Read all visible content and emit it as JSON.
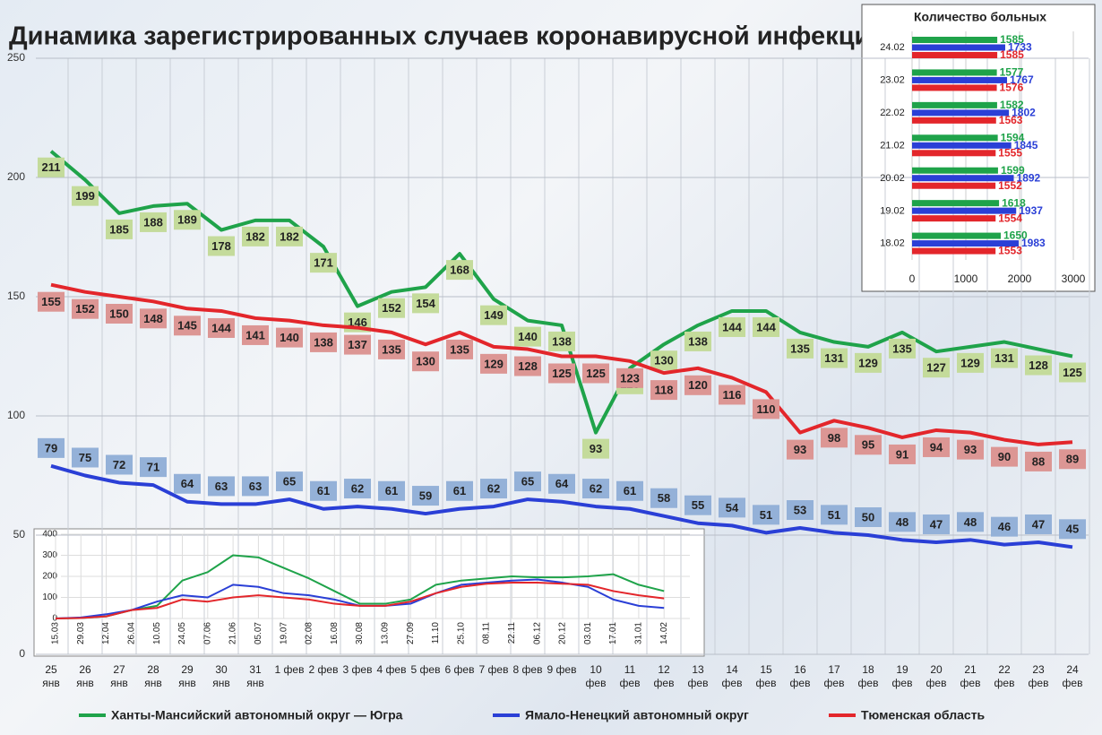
{
  "chart_data": [
    {
      "type": "line",
      "title": "Динамика зарегистрированных случаев коронавирусной инфекции",
      "categories": [
        "25\nянв",
        "26\nянв",
        "27\nянв",
        "28\nянв",
        "29\nянв",
        "30\nянв",
        "31\nянв",
        "1 фев",
        "2 фев",
        "3 фев",
        "4 фев",
        "5 фев",
        "6 фев",
        "7 фев",
        "8 фев",
        "9 фев",
        "10\nфев",
        "11\nфев",
        "12\nфев",
        "13\nфев",
        "14\nфев",
        "15\nфев",
        "16\nфев",
        "17\nфев",
        "18\nфев",
        "19\nфев",
        "20\nфев",
        "21\nфев",
        "22\nфев",
        "23\nфев",
        "24\nфев"
      ],
      "series": [
        {
          "name": "Ханты-Мансийский автономный округ — Югра",
          "color": "#1fa34a",
          "label_color": "#c4db9b",
          "values": [
            211,
            199,
            185,
            188,
            189,
            178,
            182,
            182,
            171,
            146,
            152,
            154,
            168,
            149,
            140,
            138,
            93,
            120,
            130,
            138,
            144,
            144,
            135,
            131,
            129,
            135,
            127,
            129,
            131,
            128,
            125
          ]
        },
        {
          "name": "Ямало-Ненецкий автономный округ",
          "color": "#2a3fd6",
          "label_color": "#94b1d8",
          "values": [
            79,
            75,
            72,
            71,
            64,
            63,
            63,
            65,
            61,
            62,
            61,
            59,
            61,
            62,
            65,
            64,
            62,
            61,
            58,
            55,
            54,
            51,
            53,
            51,
            50,
            48,
            47,
            48,
            46,
            47,
            45
          ]
        },
        {
          "name": "Тюменская область",
          "color": "#e3262b",
          "label_color": "#dc9694",
          "values": [
            155,
            152,
            150,
            148,
            145,
            144,
            141,
            140,
            138,
            137,
            135,
            130,
            135,
            129,
            128,
            125,
            125,
            123,
            118,
            120,
            116,
            110,
            93,
            98,
            95,
            91,
            94,
            93,
            90,
            88,
            89
          ]
        }
      ],
      "ylim": [
        0,
        250
      ],
      "yticks": [
        0,
        50,
        100,
        150,
        200,
        250
      ],
      "grid": true
    },
    {
      "type": "bar",
      "title": "Количество больных",
      "categories": [
        "24.02",
        "23.02",
        "22.02",
        "21.02",
        "20.02",
        "19.02",
        "18.02"
      ],
      "series": [
        {
          "name": "Ханты-Мансийский автономный округ — Югра",
          "color": "#1fa34a",
          "values": [
            1585,
            1577,
            1582,
            1594,
            1599,
            1618,
            1650
          ]
        },
        {
          "name": "Ямало-Ненецкий автономный округ",
          "color": "#2a3fd6",
          "values": [
            1733,
            1767,
            1802,
            1845,
            1892,
            1937,
            1983
          ]
        },
        {
          "name": "Тюменская область",
          "color": "#e3262b",
          "values": [
            1585,
            1576,
            1563,
            1555,
            1552,
            1554,
            1553
          ]
        }
      ],
      "xlim": [
        0,
        3000
      ],
      "xticks": [
        0,
        1000,
        2000,
        3000
      ],
      "grid": true
    },
    {
      "type": "line",
      "categories": [
        "15.03",
        "29.03",
        "12.04",
        "26.04",
        "10.05",
        "24.05",
        "07.06",
        "21.06",
        "05.07",
        "19.07",
        "02.08",
        "16.08",
        "30.08",
        "13.09",
        "27.09",
        "11.10",
        "25.10",
        "08.11",
        "22.11",
        "06.12",
        "20.12",
        "03.01",
        "17.01",
        "31.01",
        "14.02"
      ],
      "series": [
        {
          "name": "Ханты-Мансийский автономный округ — Югра",
          "color": "#1fa34a",
          "values": [
            0,
            2,
            10,
            40,
            60,
            180,
            220,
            300,
            290,
            240,
            190,
            130,
            70,
            70,
            90,
            160,
            180,
            190,
            200,
            195,
            195,
            200,
            210,
            160,
            130
          ]
        },
        {
          "name": "Ямало-Ненецкий автономный округ",
          "color": "#2a3fd6",
          "values": [
            0,
            5,
            20,
            40,
            80,
            110,
            100,
            160,
            150,
            120,
            110,
            90,
            60,
            60,
            70,
            120,
            160,
            170,
            180,
            185,
            170,
            150,
            90,
            60,
            50
          ]
        },
        {
          "name": "Тюменская область",
          "color": "#e3262b",
          "values": [
            0,
            2,
            10,
            40,
            50,
            90,
            80,
            100,
            110,
            100,
            90,
            70,
            60,
            60,
            80,
            120,
            150,
            165,
            170,
            170,
            165,
            160,
            130,
            110,
            95
          ]
        }
      ],
      "ylim": [
        0,
        400
      ],
      "yticks": [
        0,
        100,
        200,
        300,
        400
      ],
      "grid": true
    }
  ]
}
